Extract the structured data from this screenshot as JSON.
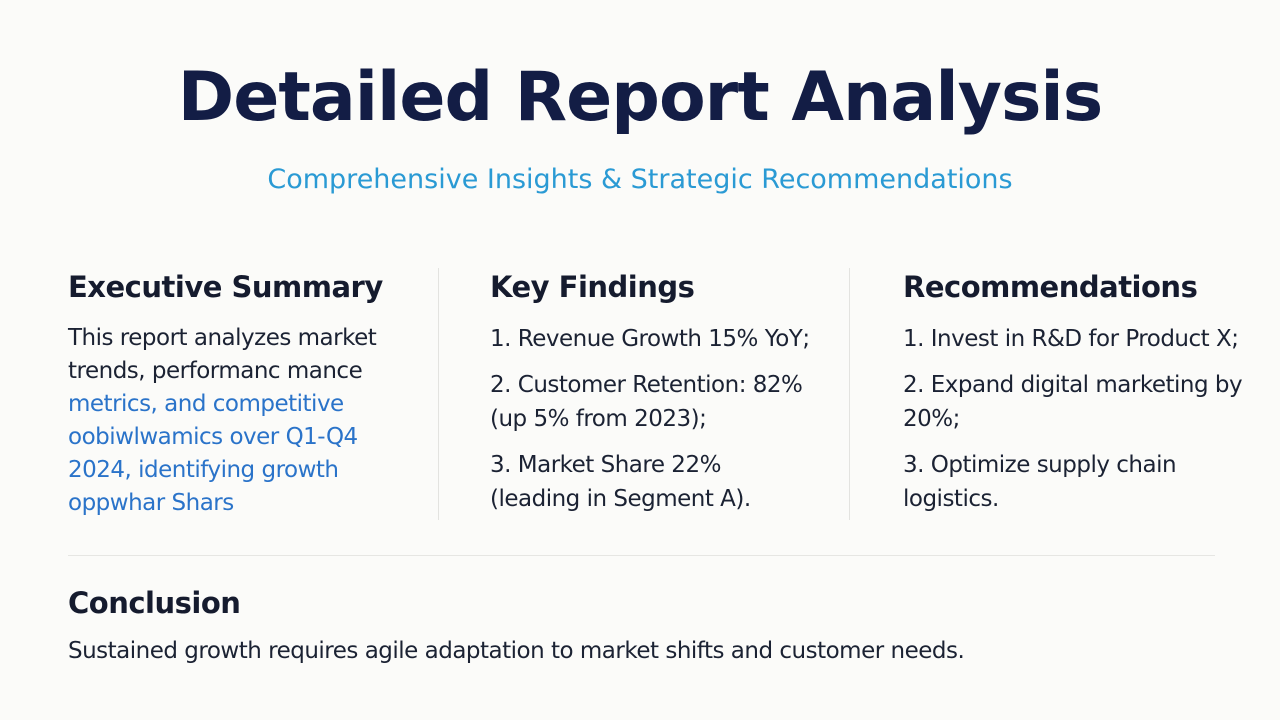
{
  "header": {
    "title": "Detailed Report Analysis",
    "subtitle": "Comprehensive Insights & Strategic Recommendations"
  },
  "columns": [
    {
      "heading": "Executive Summary",
      "items": [
        [
          "This report analyzes market",
          "trends, performanc mance",
          "metrics, and competitive",
          "oobiwlwamics over Q1-Q4",
          "2024, identifying growth",
          "oppwhar Shars"
        ]
      ]
    },
    {
      "heading": "Key Findings",
      "items": [
        [
          "1. Revenue Growth 15% YoY;"
        ],
        [
          "2. Customer Retention: 82%",
          "(up 5% from 2023);"
        ],
        [
          "3. Market Share 22%",
          "(leading in Segment A)."
        ]
      ]
    },
    {
      "heading": "Recommendations",
      "items": [
        [
          "1. Invest in R&D for Product X;"
        ],
        [
          "2. Expand digital marketing by",
          "20%;"
        ],
        [
          "3. Optimize supply chain",
          "logistics."
        ]
      ]
    }
  ],
  "conclusion": {
    "heading": "Conclusion",
    "text": "Sustained growth requires agile adaptation to market shifts and customer needs."
  }
}
